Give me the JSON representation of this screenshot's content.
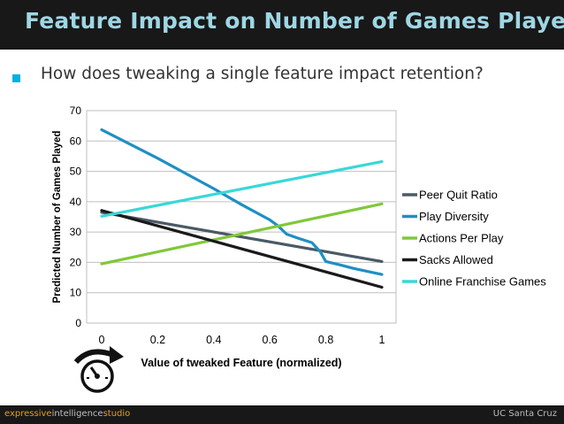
{
  "slide": {
    "title": "Feature Impact on Number of Games Played",
    "subtitle": "How does tweaking a single feature impact retention?",
    "colors": {
      "title": "#9fd6e4",
      "bullet": "#00b0e0",
      "bar": "#181818"
    }
  },
  "footer": {
    "brand_parts": [
      {
        "text": "expressive",
        "color": "#e0a020"
      },
      {
        "text": "intelligence",
        "color": "#c0c0c0"
      },
      {
        "text": "studio",
        "color": "#e0a020"
      }
    ],
    "right": "UC Santa Cruz"
  },
  "icon": {
    "name": "gauge-icon"
  },
  "chart_data": {
    "type": "line",
    "xlabel": "Value of tweaked Feature (normalized)",
    "ylabel": "Predicted Number of Games Played",
    "xlim": [
      0,
      1
    ],
    "ylim": [
      0,
      70
    ],
    "x_ticks": [
      0,
      0.2,
      0.4,
      0.6,
      0.8,
      1
    ],
    "x_tick_labels": [
      "0",
      "0.2",
      "0.4",
      "0.6",
      "0.8",
      "1"
    ],
    "y_ticks": [
      0,
      10,
      20,
      30,
      40,
      50,
      60,
      70
    ],
    "y_tick_labels": [
      "0",
      "10",
      "20",
      "30",
      "40",
      "50",
      "60",
      "70"
    ],
    "grid": true,
    "legend_position": "right",
    "series": [
      {
        "name": "Peer Quit Ratio",
        "color": "#4a5a66",
        "x": [
          0,
          1
        ],
        "y": [
          36.5,
          20.3
        ]
      },
      {
        "name": "Play Diversity",
        "color": "#1f8fc4",
        "x": [
          0,
          0.1,
          0.2,
          0.3,
          0.4,
          0.5,
          0.6,
          0.63,
          0.66,
          0.7,
          0.75,
          0.78,
          0.8,
          0.85,
          0.9,
          0.95,
          1
        ],
        "y": [
          63.7,
          59,
          54.3,
          49.3,
          44.3,
          39,
          34,
          32,
          29.3,
          28,
          26.5,
          23.5,
          20.3,
          19.2,
          18,
          17,
          16
        ]
      },
      {
        "name": "Actions Per Play",
        "color": "#80c838",
        "x": [
          0,
          1
        ],
        "y": [
          19.5,
          39.3
        ]
      },
      {
        "name": "Sacks Allowed",
        "color": "#1a1a1a",
        "x": [
          0,
          1
        ],
        "y": [
          37.1,
          11.8
        ]
      },
      {
        "name": "Online Franchise Games",
        "color": "#38d8d8",
        "x": [
          0,
          1
        ],
        "y": [
          35.2,
          53.2
        ]
      }
    ]
  }
}
